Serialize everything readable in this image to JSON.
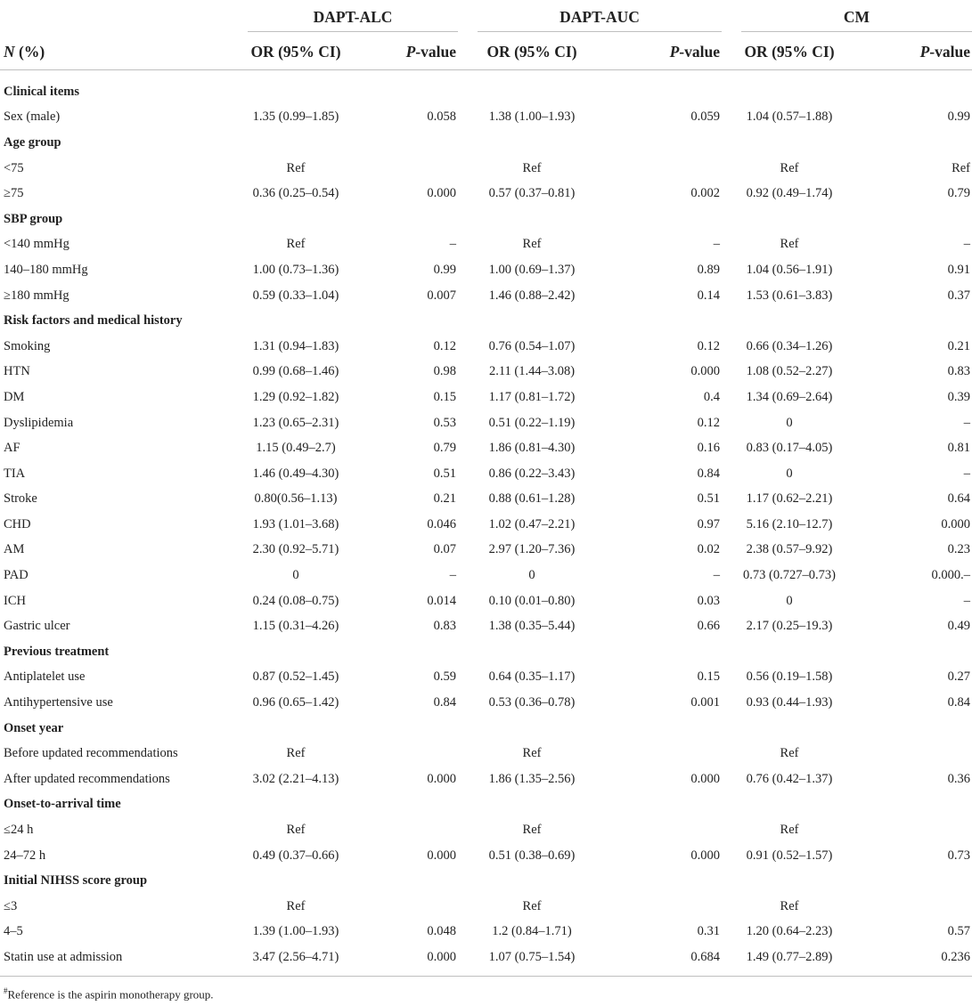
{
  "groups": [
    "DAPT-ALC",
    "DAPT-AUC",
    "CM"
  ],
  "header": {
    "n_label": "N",
    "n_suffix": " (%)",
    "or_label": "OR (95% CI)",
    "p_label_italic": "P",
    "p_label_rest": "-value"
  },
  "rows": [
    {
      "label": "Clinical items",
      "heading": true,
      "v": [
        "",
        "",
        "",
        "",
        "",
        ""
      ]
    },
    {
      "label": "Sex (male)",
      "v": [
        "1.35 (0.99–1.85)",
        "0.058",
        "1.38 (1.00–1.93)",
        "0.059",
        "1.04 (0.57–1.88)",
        "0.99"
      ]
    },
    {
      "label": "Age group",
      "heading": true,
      "v": [
        "",
        "",
        "",
        "",
        "",
        ""
      ]
    },
    {
      "label": "<75",
      "v": [
        "Ref",
        "",
        "Ref",
        "",
        "Ref",
        "Ref"
      ]
    },
    {
      "label": "≥75",
      "v": [
        "0.36 (0.25–0.54)",
        "0.000",
        "0.57 (0.37–0.81)",
        "0.002",
        "0.92 (0.49–1.74)",
        "0.79"
      ]
    },
    {
      "label": "SBP group",
      "heading": true,
      "v": [
        "",
        "",
        "",
        "",
        "",
        ""
      ]
    },
    {
      "label": "<140 mmHg",
      "v": [
        "Ref",
        "–",
        "Ref",
        "–",
        "Ref",
        "–"
      ]
    },
    {
      "label": "140–180 mmHg",
      "v": [
        "1.00 (0.73–1.36)",
        "0.99",
        "1.00 (0.69–1.37)",
        "0.89",
        "1.04 (0.56–1.91)",
        "0.91"
      ]
    },
    {
      "label": "≥180 mmHg",
      "v": [
        "0.59 (0.33–1.04)",
        "0.007",
        "1.46 (0.88–2.42)",
        "0.14",
        "1.53 (0.61–3.83)",
        "0.37"
      ]
    },
    {
      "label": "Risk factors and medical history",
      "heading": true,
      "v": [
        "",
        "",
        "",
        "",
        "",
        ""
      ]
    },
    {
      "label": "Smoking",
      "v": [
        "1.31 (0.94–1.83)",
        "0.12",
        "0.76 (0.54–1.07)",
        "0.12",
        "0.66 (0.34–1.26)",
        "0.21"
      ]
    },
    {
      "label": "HTN",
      "v": [
        "0.99 (0.68–1.46)",
        "0.98",
        "2.11 (1.44–3.08)",
        "0.000",
        "1.08 (0.52–2.27)",
        "0.83"
      ]
    },
    {
      "label": "DM",
      "v": [
        "1.29 (0.92–1.82)",
        "0.15",
        "1.17 (0.81–1.72)",
        "0.4",
        "1.34 (0.69–2.64)",
        "0.39"
      ]
    },
    {
      "label": "Dyslipidemia",
      "v": [
        "1.23 (0.65–2.31)",
        "0.53",
        "0.51 (0.22–1.19)",
        "0.12",
        "0",
        "–"
      ]
    },
    {
      "label": "AF",
      "v": [
        "1.15 (0.49–2.7)",
        "0.79",
        "1.86 (0.81–4.30)",
        "0.16",
        "0.83 (0.17–4.05)",
        "0.81"
      ]
    },
    {
      "label": "TIA",
      "v": [
        "1.46 (0.49–4.30)",
        "0.51",
        "0.86 (0.22–3.43)",
        "0.84",
        "0",
        "–"
      ]
    },
    {
      "label": "Stroke",
      "v": [
        "0.80(0.56–1.13)",
        "0.21",
        "0.88 (0.61–1.28)",
        "0.51",
        "1.17 (0.62–2.21)",
        "0.64"
      ]
    },
    {
      "label": "CHD",
      "v": [
        "1.93 (1.01–3.68)",
        "0.046",
        "1.02 (0.47–2.21)",
        "0.97",
        "5.16 (2.10–12.7)",
        "0.000"
      ]
    },
    {
      "label": "AM",
      "v": [
        "2.30 (0.92–5.71)",
        "0.07",
        "2.97 (1.20–7.36)",
        "0.02",
        "2.38 (0.57–9.92)",
        "0.23"
      ]
    },
    {
      "label": "PAD",
      "v": [
        "0",
        "–",
        "0",
        "–",
        "0.73 (0.727–0.73)",
        "0.000.–"
      ]
    },
    {
      "label": "ICH",
      "v": [
        "0.24 (0.08–0.75)",
        "0.014",
        "0.10 (0.01–0.80)",
        "0.03",
        "0",
        "–"
      ]
    },
    {
      "label": "Gastric ulcer",
      "v": [
        "1.15 (0.31–4.26)",
        "0.83",
        "1.38 (0.35–5.44)",
        "0.66",
        "2.17 (0.25–19.3)",
        "0.49"
      ]
    },
    {
      "label": "Previous treatment",
      "heading": true,
      "v": [
        "",
        "",
        "",
        "",
        "",
        ""
      ]
    },
    {
      "label": "Antiplatelet use",
      "v": [
        "0.87 (0.52–1.45)",
        "0.59",
        "0.64 (0.35–1.17)",
        "0.15",
        "0.56 (0.19–1.58)",
        "0.27"
      ]
    },
    {
      "label": "Antihypertensive use",
      "v": [
        "0.96 (0.65–1.42)",
        "0.84",
        "0.53 (0.36–0.78)",
        "0.001",
        "0.93 (0.44–1.93)",
        "0.84"
      ]
    },
    {
      "label": "Onset year",
      "heading": true,
      "v": [
        "",
        "",
        "",
        "",
        "",
        ""
      ]
    },
    {
      "label": "Before updated recommendations",
      "v": [
        "Ref",
        "",
        "Ref",
        "",
        "Ref",
        ""
      ]
    },
    {
      "label": "After updated recommendations",
      "v": [
        "3.02 (2.21–4.13)",
        "0.000",
        "1.86 (1.35–2.56)",
        "0.000",
        "0.76 (0.42–1.37)",
        "0.36"
      ]
    },
    {
      "label": "Onset-to-arrival time",
      "heading": true,
      "v": [
        "",
        "",
        "",
        "",
        "",
        ""
      ]
    },
    {
      "label": "≤24 h",
      "v": [
        "Ref",
        "",
        "Ref",
        "",
        "Ref",
        ""
      ]
    },
    {
      "label": "24–72 h",
      "v": [
        "0.49 (0.37–0.66)",
        "0.000",
        "0.51 (0.38–0.69)",
        "0.000",
        "0.91 (0.52–1.57)",
        "0.73"
      ]
    },
    {
      "label": "Initial NIHSS score group",
      "heading": true,
      "v": [
        "",
        "",
        "",
        "",
        "",
        ""
      ]
    },
    {
      "label": "≤3",
      "v": [
        "Ref",
        "",
        "Ref",
        "",
        "Ref",
        ""
      ]
    },
    {
      "label": "4–5",
      "v": [
        "1.39 (1.00–1.93)",
        "0.048",
        "1.2 (0.84–1.71)",
        "0.31",
        "1.20 (0.64–2.23)",
        "0.57"
      ]
    },
    {
      "label": "Statin use at admission",
      "v": [
        "3.47 (2.56–4.71)",
        "0.000",
        "1.07 (0.75–1.54)",
        "0.684",
        "1.49 (0.77–2.89)",
        "0.236"
      ]
    }
  ],
  "footnote": {
    "marker": "#",
    "text": "Reference is the aspirin monotherapy group."
  }
}
